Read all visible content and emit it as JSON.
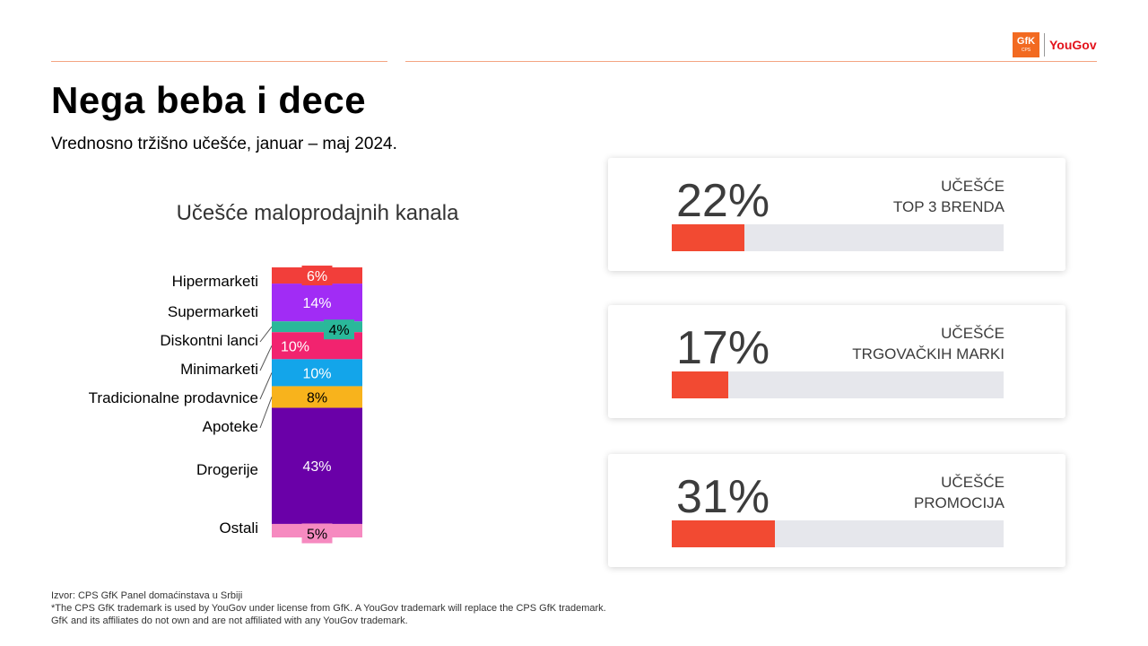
{
  "header": {
    "gfk_logo_text": "GfK",
    "gfk_logo_sub": "CPS",
    "yougov_logo_text": "YouGov"
  },
  "page": {
    "title": "Nega beba i dece",
    "subtitle": "Vrednosno tržišno učešće, januar – maj 2024."
  },
  "chart_data": {
    "type": "bar",
    "subtype": "stacked-100",
    "title": "Učešće maloprodajnih kanala",
    "categories": [
      "Hipermarketi",
      "Supermarketi",
      "Diskontni lanci",
      "Minimarketi",
      "Tradicionalne prodavnice",
      "Apoteke",
      "Drogerije",
      "Ostali"
    ],
    "values": [
      6,
      14,
      4,
      10,
      10,
      8,
      43,
      5
    ],
    "value_labels": [
      "6%",
      "14%",
      "4%",
      "10%",
      "10%",
      "8%",
      "43%",
      "5%"
    ],
    "colors": [
      "#f23e3a",
      "#a12cf5",
      "#2ab89a",
      "#f2236f",
      "#13a5ea",
      "#f8b31c",
      "#6a00a8",
      "#f68ac0"
    ],
    "label_colors": [
      "#ffffff",
      "#ffffff",
      "#000000",
      "#ffffff",
      "#ffffff",
      "#000000",
      "#ffffff",
      "#000000"
    ],
    "ylim": [
      0,
      100
    ]
  },
  "cards": [
    {
      "value": "22%",
      "line1": "UČEŠĆE",
      "line2": "TOP 3 BRENDA",
      "fraction": 0.22
    },
    {
      "value": "17%",
      "line1": "UČEŠĆE",
      "line2": "TRGOVAČKIH MARKI",
      "fraction": 0.17
    },
    {
      "value": "31%",
      "line1": "UČEŠĆE",
      "line2": "PROMOCIJA",
      "fraction": 0.31
    }
  ],
  "colors": {
    "accent": "#f24a32",
    "track": "#e6e7ec",
    "rule": "#f4a582"
  },
  "footer": {
    "line1": "Izvor: CPS GfK Panel domaćinstava u Srbiji",
    "line2": "*The CPS GfK trademark is used by YouGov under license from GfK. A YouGov trademark will replace the CPS GfK trademark.",
    "line3": "GfK and its affiliates do not own and are not affiliated with any YouGov trademark."
  }
}
